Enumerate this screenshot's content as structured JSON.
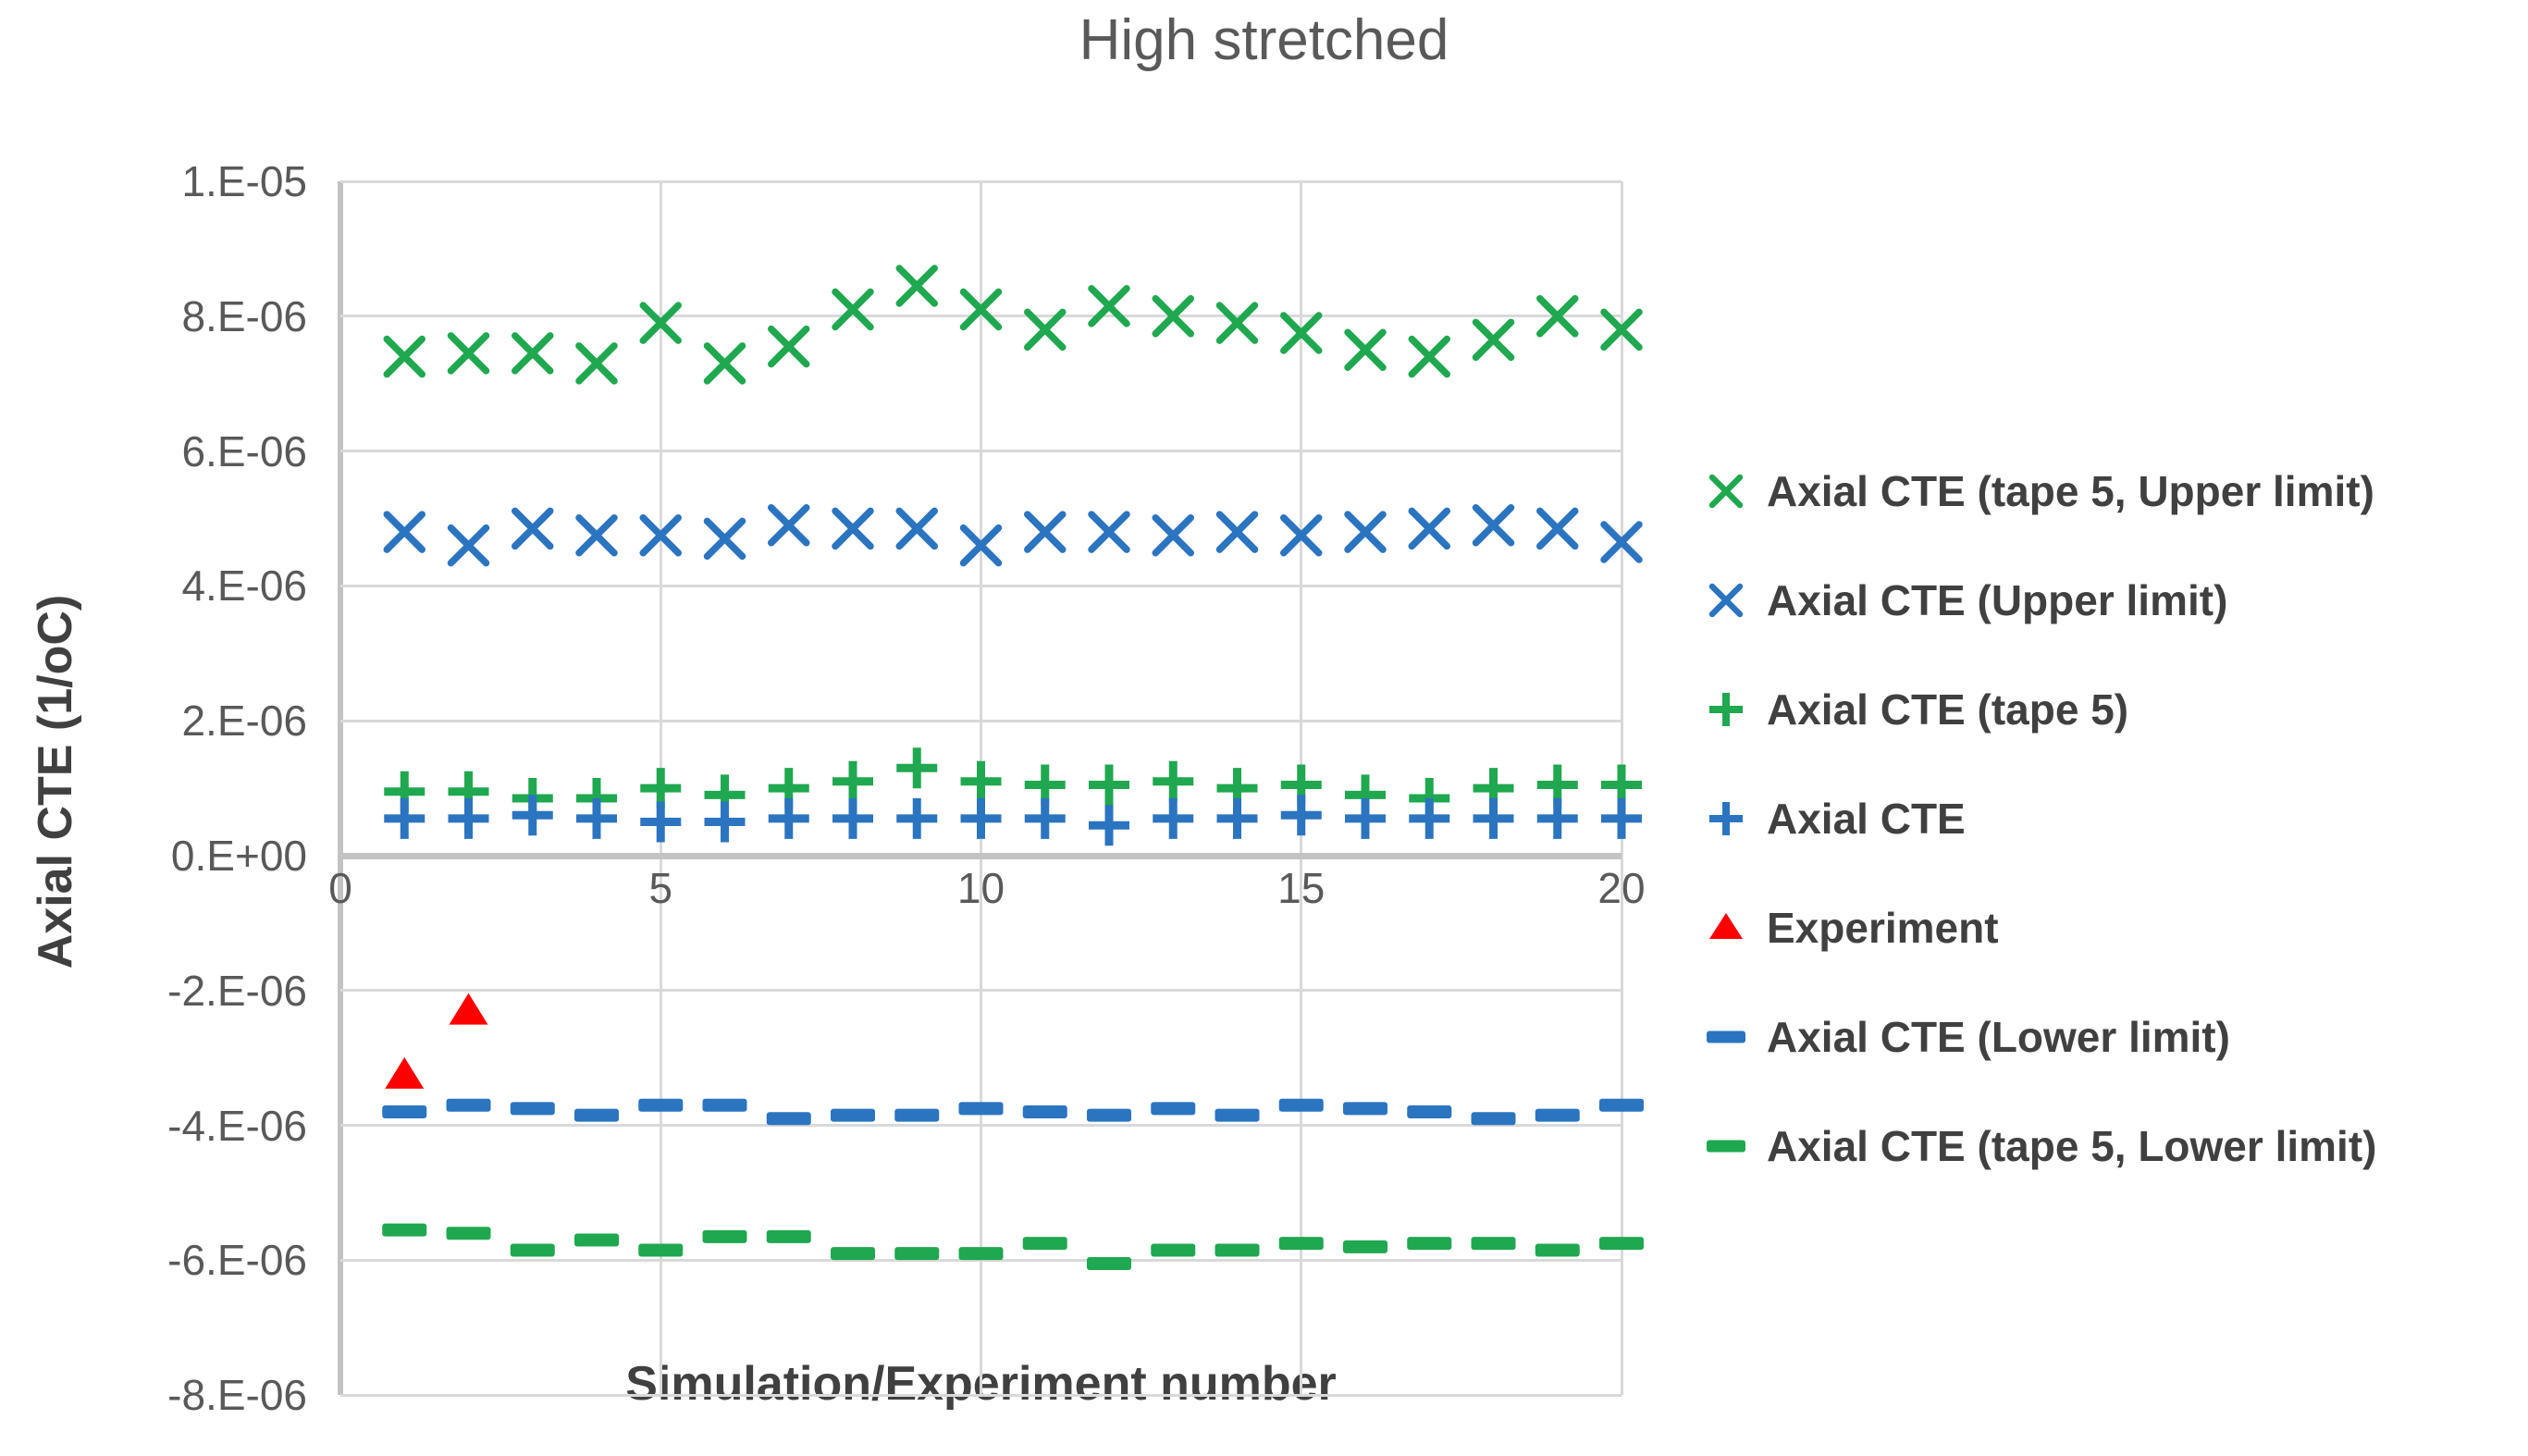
{
  "chart_data": {
    "type": "scatter",
    "title": "High stretched",
    "xlabel": "Simulation/Experiment number",
    "ylabel": "Axial CTE (1/oC)",
    "xlim": [
      0,
      20
    ],
    "ylim_in_units": [
      -8,
      10
    ],
    "unit_multiplier": 1e-06,
    "grid": true,
    "legend_position": "right",
    "x_ticks": [
      0,
      5,
      10,
      15,
      20
    ],
    "y_ticks": [
      {
        "label": "1.E-05",
        "v": 10
      },
      {
        "label": "8.E-06",
        "v": 8
      },
      {
        "label": "6.E-06",
        "v": 6
      },
      {
        "label": "4.E-06",
        "v": 4
      },
      {
        "label": "2.E-06",
        "v": 2
      },
      {
        "label": "0.E+00",
        "v": 0
      },
      {
        "label": "-2.E-06",
        "v": -2
      },
      {
        "label": "-4.E-06",
        "v": -4
      },
      {
        "label": "-6.E-06",
        "v": -6
      },
      {
        "label": "-8.E-06",
        "v": -8
      }
    ],
    "series": [
      {
        "id": "tape5-upper",
        "name": "Axial CTE (tape 5, Upper limit)",
        "marker": "x",
        "color": "#1FA84F",
        "x": [
          1,
          2,
          3,
          4,
          5,
          6,
          7,
          8,
          9,
          10,
          11,
          12,
          13,
          14,
          15,
          16,
          17,
          18,
          19,
          20
        ],
        "values": [
          7.4,
          7.45,
          7.45,
          7.3,
          7.9,
          7.3,
          7.55,
          8.1,
          8.45,
          8.1,
          7.8,
          8.15,
          8.0,
          7.9,
          7.75,
          7.5,
          7.4,
          7.65,
          8.0,
          7.8
        ]
      },
      {
        "id": "upper",
        "name": "Axial CTE (Upper limit)",
        "marker": "x",
        "color": "#2B74C0",
        "x": [
          1,
          2,
          3,
          4,
          5,
          6,
          7,
          8,
          9,
          10,
          11,
          12,
          13,
          14,
          15,
          16,
          17,
          18,
          19,
          20
        ],
        "values": [
          4.8,
          4.6,
          4.85,
          4.75,
          4.75,
          4.7,
          4.9,
          4.85,
          4.85,
          4.6,
          4.8,
          4.8,
          4.75,
          4.8,
          4.75,
          4.8,
          4.85,
          4.9,
          4.85,
          4.65
        ]
      },
      {
        "id": "tape5",
        "name": "Axial CTE (tape 5)",
        "marker": "plus",
        "color": "#1FA84F",
        "x": [
          1,
          2,
          3,
          4,
          5,
          6,
          7,
          8,
          9,
          10,
          11,
          12,
          13,
          14,
          15,
          16,
          17,
          18,
          19,
          20
        ],
        "values": [
          0.95,
          0.95,
          0.85,
          0.85,
          1.0,
          0.9,
          1.0,
          1.1,
          1.3,
          1.1,
          1.05,
          1.05,
          1.1,
          1.0,
          1.05,
          0.9,
          0.85,
          1.0,
          1.05,
          1.05
        ]
      },
      {
        "id": "base",
        "name": "Axial CTE",
        "marker": "plus",
        "color": "#2B74C0",
        "x": [
          1,
          2,
          3,
          4,
          5,
          6,
          7,
          8,
          9,
          10,
          11,
          12,
          13,
          14,
          15,
          16,
          17,
          18,
          19,
          20
        ],
        "values": [
          0.55,
          0.55,
          0.6,
          0.55,
          0.5,
          0.5,
          0.55,
          0.55,
          0.55,
          0.55,
          0.55,
          0.45,
          0.55,
          0.55,
          0.6,
          0.55,
          0.55,
          0.55,
          0.55,
          0.55
        ]
      },
      {
        "id": "experiment",
        "name": "Experiment",
        "marker": "triangle",
        "color": "#FF0000",
        "x": [
          1,
          2
        ],
        "values": [
          -3.25,
          -2.3
        ]
      },
      {
        "id": "lower",
        "name": "Axial CTE (Lower limit)",
        "marker": "dash",
        "color": "#2B74C0",
        "x": [
          1,
          2,
          3,
          4,
          5,
          6,
          7,
          8,
          9,
          10,
          11,
          12,
          13,
          14,
          15,
          16,
          17,
          18,
          19,
          20
        ],
        "values": [
          -3.8,
          -3.7,
          -3.75,
          -3.85,
          -3.7,
          -3.7,
          -3.9,
          -3.85,
          -3.85,
          -3.75,
          -3.8,
          -3.85,
          -3.75,
          -3.85,
          -3.7,
          -3.75,
          -3.8,
          -3.9,
          -3.85,
          -3.7
        ]
      },
      {
        "id": "tape5-lower",
        "name": "Axial CTE (tape 5, Lower limit)",
        "marker": "dash",
        "color": "#1FA84F",
        "x": [
          1,
          2,
          3,
          4,
          5,
          6,
          7,
          8,
          9,
          10,
          11,
          12,
          13,
          14,
          15,
          16,
          17,
          18,
          19,
          20
        ],
        "values": [
          -5.55,
          -5.6,
          -5.85,
          -5.7,
          -5.85,
          -5.65,
          -5.65,
          -5.9,
          -5.9,
          -5.9,
          -5.75,
          -6.05,
          -5.85,
          -5.85,
          -5.75,
          -5.8,
          -5.75,
          -5.75,
          -5.85,
          -5.75
        ]
      }
    ]
  },
  "colors": {
    "green": "#1FA84F",
    "blue": "#2B74C0",
    "red": "#FF0000",
    "title_text": "#595959",
    "tick_text": "#595959",
    "label_text": "#404040",
    "gridline": "#D9D9D9",
    "axis_line": "#C3C3C3"
  }
}
